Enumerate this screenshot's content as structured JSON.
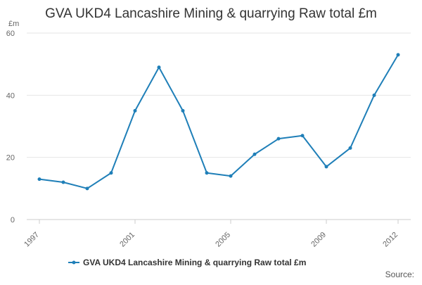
{
  "chart_data": {
    "type": "line",
    "title": "GVA UKD4 Lancashire Mining & quarrying Raw total £m",
    "ylabel": "£m",
    "xlabel": "",
    "x": [
      1997,
      1998,
      1999,
      2000,
      2001,
      2002,
      2003,
      2004,
      2005,
      2006,
      2007,
      2008,
      2009,
      2010,
      2011,
      2012
    ],
    "x_tick_labels": [
      "1997",
      "2001",
      "2005",
      "2009",
      "2012"
    ],
    "y_tick_labels": [
      "0",
      "20",
      "40",
      "60"
    ],
    "ylim": [
      0,
      60
    ],
    "grid": true,
    "legend_position": "bottom",
    "series": [
      {
        "name": "GVA UKD4 Lancashire Mining & quarrying Raw total £m",
        "color": "#1f7fb8",
        "values": [
          13,
          12,
          10,
          15,
          35,
          49,
          35,
          15,
          14,
          21,
          26,
          27,
          17,
          23,
          40,
          53
        ]
      }
    ],
    "source_label": "Source:"
  }
}
